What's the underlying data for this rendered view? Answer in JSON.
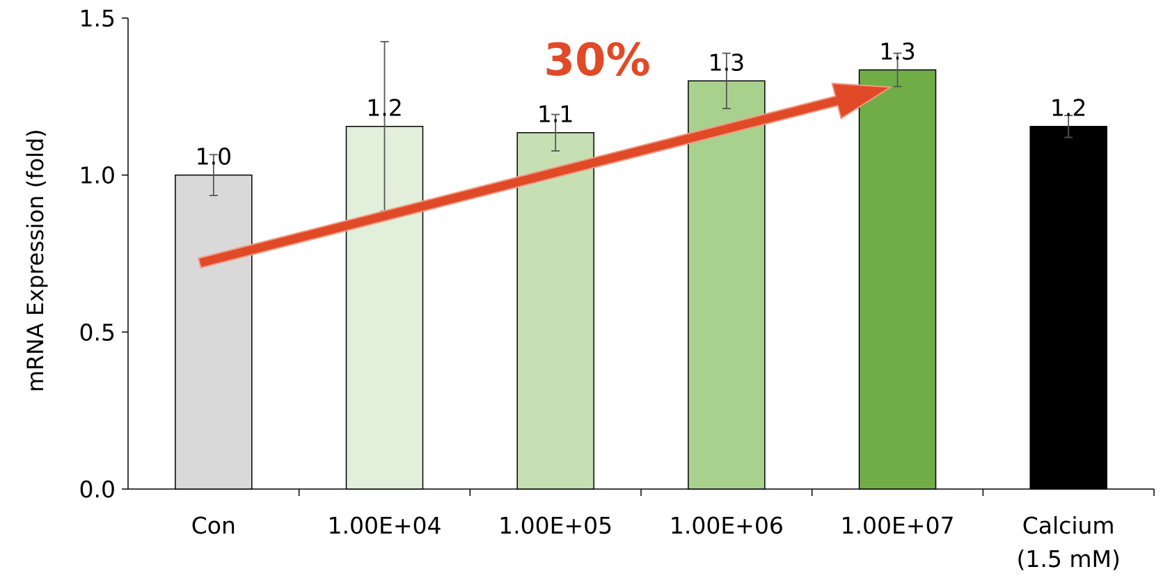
{
  "chart_data": {
    "type": "bar",
    "title": "",
    "xlabel": "",
    "ylabel": "mRNA Expression (fold)",
    "ylim": [
      0,
      1.5
    ],
    "yticks": [
      "0.0",
      "0.5",
      "1.0",
      "1.5"
    ],
    "grid": false,
    "legend": "none",
    "categories": [
      [
        "Con"
      ],
      [
        "1.00E+04"
      ],
      [
        "1.00E+05"
      ],
      [
        "1.00E+06"
      ],
      [
        "1.00E+07"
      ],
      [
        "Calcium",
        "(1.5 mM)"
      ]
    ],
    "values": [
      1.0,
      1.155,
      1.135,
      1.3,
      1.335,
      1.155
    ],
    "data_labels": [
      "1.0",
      "1.2",
      "1.1",
      "1.3",
      "1.3",
      "1.2"
    ],
    "error_bars": [
      0.065,
      0.27,
      0.058,
      0.088,
      0.053,
      0.035
    ],
    "bar_colors": [
      "#d9d9d9",
      "#e2efda",
      "#c6e0b4",
      "#a9d18e",
      "#70ad47",
      "#000000"
    ],
    "annotation": {
      "text": "30%",
      "color": "#e04a27",
      "arrow_from_value": 0.72,
      "arrow_to_value": 1.28,
      "arrow_from_category": 0,
      "arrow_to_category": 4
    }
  }
}
